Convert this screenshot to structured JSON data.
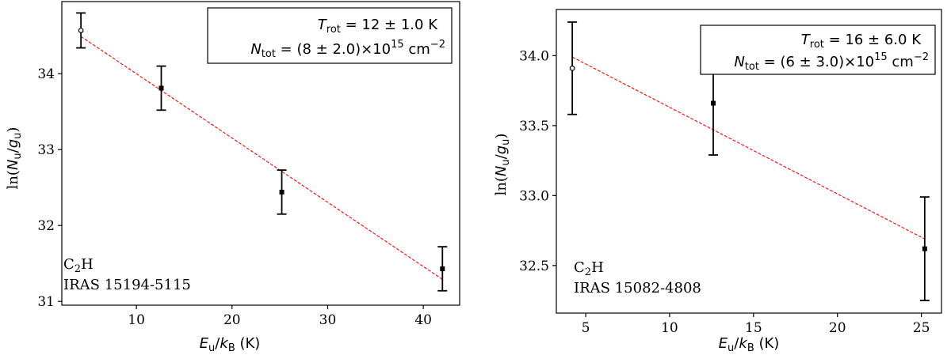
{
  "chart_data": [
    {
      "type": "scatter",
      "xlabel": "E_u/k_B (K)",
      "ylabel": "ln(N_u/g_u)",
      "xlim": [
        2.2,
        43.8
      ],
      "ylim": [
        30.95,
        34.95
      ],
      "xticks": [
        10,
        20,
        30,
        40
      ],
      "yticks": [
        31,
        32,
        33,
        34
      ],
      "points": [
        {
          "x": 4.2,
          "y": 34.57,
          "err": 0.23,
          "marker": "open-circle"
        },
        {
          "x": 12.6,
          "y": 33.81,
          "err": 0.29,
          "marker": "filled-square"
        },
        {
          "x": 25.2,
          "y": 32.44,
          "err": 0.29,
          "marker": "filled-square"
        },
        {
          "x": 42.0,
          "y": 31.43,
          "err": 0.29,
          "marker": "filled-square"
        }
      ],
      "fit": {
        "x": [
          4.2,
          42.0
        ],
        "y": [
          34.49,
          31.29
        ],
        "color": "#ff0000",
        "style": "dashed"
      },
      "box": {
        "trot_label": "T",
        "trot_sub": "rot",
        "trot_value": " = 12 ± 1.0 K",
        "ntot_label": "N",
        "ntot_sub": "tot",
        "ntot_value": " = (8 ± 2.0)×10",
        "ntot_exp": "15",
        "ntot_unit": " cm",
        "ntot_unit_exp": "−2"
      },
      "annotation": {
        "mol_main": "C",
        "mol_sub": "2",
        "mol_end": "H",
        "source": "IRAS 15194-5115"
      }
    },
    {
      "type": "scatter",
      "xlabel": "E_u/k_B (K)",
      "ylabel": "ln(N_u/g_u)",
      "xlim": [
        3.25,
        26.2
      ],
      "ylim": [
        32.16,
        34.33
      ],
      "xticks": [
        5,
        10,
        15,
        20,
        25
      ],
      "yticks": [
        32.5,
        33.0,
        33.5,
        34.0
      ],
      "points": [
        {
          "x": 4.2,
          "y": 33.91,
          "err": 0.33,
          "marker": "open-circle"
        },
        {
          "x": 12.6,
          "y": 33.66,
          "err": 0.37,
          "marker": "filled-square"
        },
        {
          "x": 25.2,
          "y": 32.62,
          "err": 0.37,
          "marker": "filled-square"
        }
      ],
      "fit": {
        "x": [
          4.2,
          25.2
        ],
        "y": [
          33.99,
          32.69
        ],
        "color": "#ff0000",
        "style": "dashed"
      },
      "box": {
        "trot_label": "T",
        "trot_sub": "rot",
        "trot_value": " = 16 ± 6.0 K",
        "ntot_label": "N",
        "ntot_sub": "tot",
        "ntot_value": " = (6 ± 3.0)×10",
        "ntot_exp": "15",
        "ntot_unit": " cm",
        "ntot_unit_exp": "−2"
      },
      "annotation": {
        "mol_main": "C",
        "mol_sub": "2",
        "mol_end": "H",
        "source": "IRAS 15082-4808"
      }
    }
  ]
}
